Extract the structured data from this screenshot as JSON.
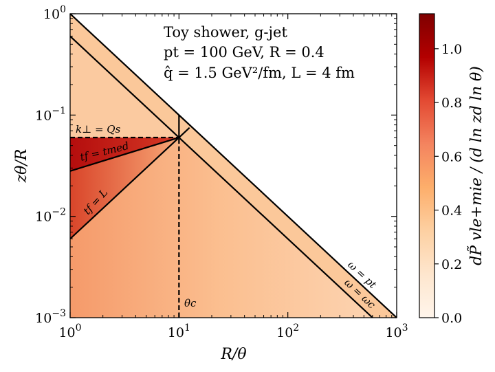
{
  "chart_data": {
    "type": "heatmap",
    "x_scale": "log",
    "y_scale": "log",
    "xlim": [
      1,
      1000
    ],
    "ylim": [
      0.001,
      1
    ],
    "xlabel": "R/θ",
    "ylabel": "zθ/R",
    "x_ticks": [
      {
        "value": 1,
        "base": "10",
        "exp": "0"
      },
      {
        "value": 10,
        "base": "10",
        "exp": "1"
      },
      {
        "value": 100,
        "base": "10",
        "exp": "2"
      },
      {
        "value": 1000,
        "base": "10",
        "exp": "3"
      }
    ],
    "y_ticks": [
      {
        "value": 0.001,
        "base": "10",
        "exp": "−3"
      },
      {
        "value": 0.01,
        "base": "10",
        "exp": "−2"
      },
      {
        "value": 0.1,
        "base": "10",
        "exp": "−1"
      },
      {
        "value": 1,
        "base": "10",
        "exp": "0"
      }
    ],
    "colorbar": {
      "label": "dP̃ vle+mie / (d ln zd ln θ)",
      "range": [
        0.0,
        1.13
      ],
      "ticks": [
        "0.0",
        "0.2",
        "0.4",
        "0.6",
        "0.8",
        "1.0"
      ],
      "tick_values": [
        0.0,
        0.2,
        0.4,
        0.6,
        0.8,
        1.0
      ],
      "colormap": [
        "#fff5eb",
        "#fee6ce",
        "#fdd0a2",
        "#fdae6b",
        "#f4845f",
        "#e34a33",
        "#b30000",
        "#7f0000"
      ]
    },
    "annotation_lines": [
      "Toy shower, g-jet",
      "pt = 100 GeV, R = 0.4",
      "q̂ = 1.5 GeV²/fm, L = 4 fm"
    ],
    "curves": [
      {
        "name": "ω = pt",
        "label": "ω = pt",
        "points": [
          [
            1,
            1
          ],
          [
            1000,
            0.001
          ]
        ]
      },
      {
        "name": "ω = ωc",
        "label": "ω = ωc",
        "points": [
          [
            1,
            0.6
          ],
          [
            600,
            0.001
          ]
        ]
      },
      {
        "name": "k⊥ = Qs",
        "label": "k⊥ = Qs",
        "dashed": true,
        "points": [
          [
            1,
            0.06
          ],
          [
            10,
            0.06
          ]
        ]
      },
      {
        "name": "tf = tmed",
        "label": "tf = tmed",
        "points": [
          [
            1,
            0.028
          ],
          [
            10,
            0.06
          ]
        ]
      },
      {
        "name": "tf = L",
        "label": "tf = L",
        "points": [
          [
            1,
            0.006
          ],
          [
            10,
            0.06
          ]
        ]
      },
      {
        "name": "θc",
        "label": "θc",
        "dashed": true,
        "points": [
          [
            10,
            0.001
          ],
          [
            10,
            0.06
          ]
        ]
      },
      {
        "name": "vertical",
        "points": [
          [
            10,
            0.06
          ],
          [
            10,
            0.1
          ]
        ]
      },
      {
        "name": "diagonal",
        "points": [
          [
            10,
            0.06
          ],
          [
            12.5,
            0.075
          ]
        ]
      }
    ],
    "regions": [
      {
        "name": "upper-band",
        "value": 0.38
      },
      {
        "name": "wedge-above-Qs",
        "value": 0.36
      },
      {
        "name": "Qs-to-tmed",
        "value": 0.98
      },
      {
        "name": "tmed-to-L",
        "value": 0.62
      },
      {
        "name": "below-L",
        "value": 0.45
      },
      {
        "name": "right-lower",
        "value": 0.38
      }
    ]
  }
}
